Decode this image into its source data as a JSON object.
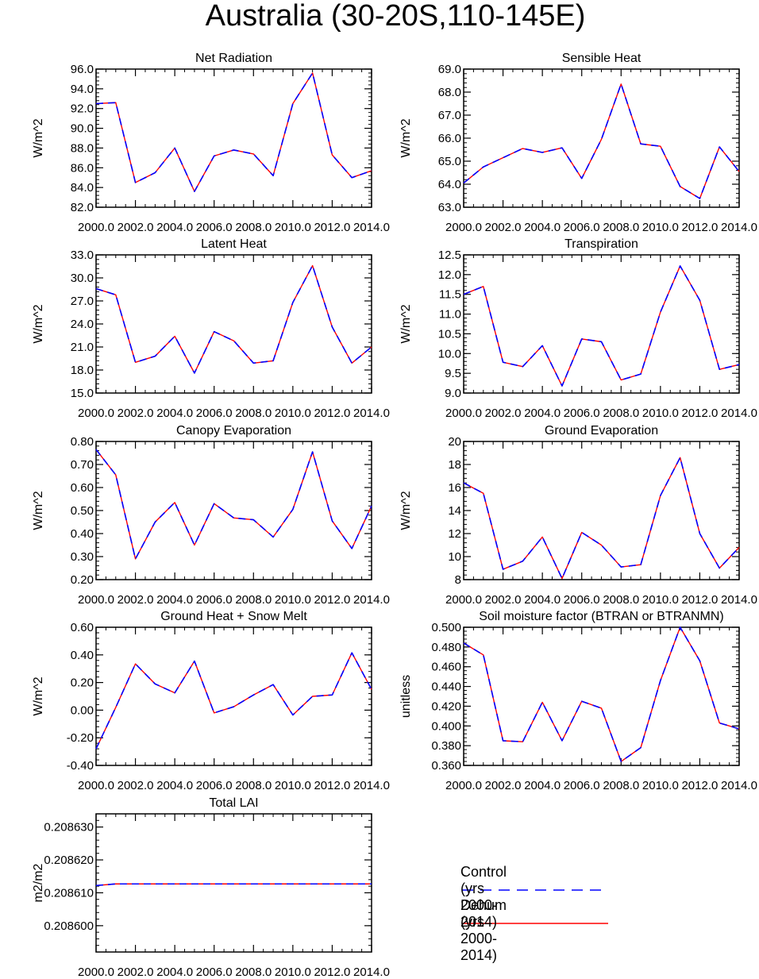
{
  "page": {
    "title": "Australia (30-20S,110-145E)"
  },
  "legend": {
    "items": [
      {
        "label": "Control (yrs 2000-2014)",
        "color": "#0000ff",
        "style": "dashed"
      },
      {
        "label": "Dehum (yrs 2000-2014)",
        "color": "#ff0000",
        "style": "solid"
      }
    ]
  },
  "chart_data": [
    {
      "id": "net-radiation",
      "type": "line",
      "title": "Net Radiation",
      "xlabel": "",
      "ylabel": "W/m^2",
      "x": [
        2000,
        2001,
        2002,
        2003,
        2004,
        2005,
        2006,
        2007,
        2008,
        2009,
        2010,
        2011,
        2012,
        2013,
        2014
      ],
      "xticks": [
        "2000.0",
        "2002.0",
        "2004.0",
        "2006.0",
        "2008.0",
        "2010.0",
        "2012.0",
        "2014.0"
      ],
      "xlim": [
        2000,
        2014
      ],
      "ylim": [
        82,
        96
      ],
      "yticks": [
        "82.0",
        "84.0",
        "86.0",
        "88.0",
        "90.0",
        "92.0",
        "94.0",
        "96.0"
      ],
      "series": [
        {
          "name": "Control (yrs 2000-2014)",
          "values": [
            92.5,
            92.6,
            84.5,
            85.5,
            88.0,
            83.6,
            87.2,
            87.8,
            87.4,
            85.2,
            92.5,
            95.6,
            87.3,
            85.0,
            85.7
          ]
        },
        {
          "name": "Dehum (yrs 2000-2014)",
          "values": [
            92.5,
            92.6,
            84.5,
            85.5,
            88.0,
            83.6,
            87.2,
            87.8,
            87.4,
            85.2,
            92.5,
            95.6,
            87.3,
            85.0,
            85.7
          ]
        }
      ]
    },
    {
      "id": "sensible-heat",
      "type": "line",
      "title": "Sensible Heat",
      "xlabel": "",
      "ylabel": "W/m^2",
      "x": [
        2000,
        2001,
        2002,
        2003,
        2004,
        2005,
        2006,
        2007,
        2008,
        2009,
        2010,
        2011,
        2012,
        2013,
        2014
      ],
      "xticks": [
        "2000.0",
        "2002.0",
        "2004.0",
        "2006.0",
        "2008.0",
        "2010.0",
        "2012.0",
        "2014.0"
      ],
      "xlim": [
        2000,
        2014
      ],
      "ylim": [
        63,
        69
      ],
      "yticks": [
        "63.0",
        "64.0",
        "65.0",
        "66.0",
        "67.0",
        "68.0",
        "69.0"
      ],
      "series": [
        {
          "name": "Control (yrs 2000-2014)",
          "values": [
            64.05,
            64.75,
            65.15,
            65.55,
            65.38,
            65.58,
            64.25,
            65.95,
            68.35,
            65.75,
            65.65,
            63.9,
            63.38,
            65.62,
            64.55
          ]
        },
        {
          "name": "Dehum (yrs 2000-2014)",
          "values": [
            64.05,
            64.75,
            65.15,
            65.55,
            65.38,
            65.58,
            64.25,
            65.95,
            68.35,
            65.75,
            65.65,
            63.9,
            63.38,
            65.62,
            64.55
          ]
        }
      ]
    },
    {
      "id": "latent-heat",
      "type": "line",
      "title": "Latent Heat",
      "xlabel": "",
      "ylabel": "W/m^2",
      "x": [
        2000,
        2001,
        2002,
        2003,
        2004,
        2005,
        2006,
        2007,
        2008,
        2009,
        2010,
        2011,
        2012,
        2013,
        2014
      ],
      "xticks": [
        "2000.0",
        "2002.0",
        "2004.0",
        "2006.0",
        "2008.0",
        "2010.0",
        "2012.0",
        "2014.0"
      ],
      "xlim": [
        2000,
        2014
      ],
      "ylim": [
        15,
        33
      ],
      "yticks": [
        "15.0",
        "18.0",
        "21.0",
        "24.0",
        "27.0",
        "30.0",
        "33.0"
      ],
      "series": [
        {
          "name": "Control (yrs 2000-2014)",
          "values": [
            28.6,
            27.8,
            19.0,
            19.8,
            22.4,
            17.6,
            23.0,
            21.8,
            18.9,
            19.2,
            26.8,
            31.6,
            23.6,
            18.9,
            21.0
          ]
        },
        {
          "name": "Dehum (yrs 2000-2014)",
          "values": [
            28.6,
            27.8,
            19.0,
            19.8,
            22.4,
            17.6,
            23.0,
            21.8,
            18.9,
            19.2,
            26.8,
            31.6,
            23.6,
            18.9,
            21.0
          ]
        }
      ]
    },
    {
      "id": "transpiration",
      "type": "line",
      "title": "Transpiration",
      "xlabel": "",
      "ylabel": "W/m^2",
      "x": [
        2000,
        2001,
        2002,
        2003,
        2004,
        2005,
        2006,
        2007,
        2008,
        2009,
        2010,
        2011,
        2012,
        2013,
        2014
      ],
      "xticks": [
        "2000.0",
        "2002.0",
        "2004.0",
        "2006.0",
        "2008.0",
        "2010.0",
        "2012.0",
        "2014.0"
      ],
      "xlim": [
        2000,
        2014
      ],
      "ylim": [
        9.0,
        12.5
      ],
      "yticks": [
        "9.0",
        "9.5",
        "10.0",
        "10.5",
        "11.0",
        "11.5",
        "12.0",
        "12.5"
      ],
      "series": [
        {
          "name": "Control (yrs 2000-2014)",
          "values": [
            11.5,
            11.7,
            9.78,
            9.67,
            10.2,
            9.18,
            10.37,
            10.3,
            9.33,
            9.48,
            11.05,
            12.22,
            11.35,
            9.6,
            9.72
          ]
        },
        {
          "name": "Dehum (yrs 2000-2014)",
          "values": [
            11.5,
            11.7,
            9.78,
            9.67,
            10.2,
            9.18,
            10.37,
            10.3,
            9.33,
            9.48,
            11.05,
            12.22,
            11.35,
            9.6,
            9.72
          ]
        }
      ]
    },
    {
      "id": "canopy-evaporation",
      "type": "line",
      "title": "Canopy Evaporation",
      "xlabel": "",
      "ylabel": "W/m^2",
      "x": [
        2000,
        2001,
        2002,
        2003,
        2004,
        2005,
        2006,
        2007,
        2008,
        2009,
        2010,
        2011,
        2012,
        2013,
        2014
      ],
      "xticks": [
        "2000.0",
        "2002.0",
        "2004.0",
        "2006.0",
        "2008.0",
        "2010.0",
        "2012.0",
        "2014.0"
      ],
      "xlim": [
        2000,
        2014
      ],
      "ylim": [
        0.2,
        0.8
      ],
      "yticks": [
        "0.20",
        "0.30",
        "0.40",
        "0.50",
        "0.60",
        "0.70",
        "0.80"
      ],
      "series": [
        {
          "name": "Control (yrs 2000-2014)",
          "values": [
            0.765,
            0.655,
            0.29,
            0.45,
            0.535,
            0.35,
            0.53,
            0.468,
            0.46,
            0.385,
            0.505,
            0.755,
            0.455,
            0.335,
            0.52
          ]
        },
        {
          "name": "Dehum (yrs 2000-2014)",
          "values": [
            0.765,
            0.655,
            0.29,
            0.45,
            0.535,
            0.35,
            0.53,
            0.468,
            0.46,
            0.385,
            0.505,
            0.755,
            0.455,
            0.335,
            0.52
          ]
        }
      ]
    },
    {
      "id": "ground-evaporation",
      "type": "line",
      "title": "Ground Evaporation",
      "xlabel": "",
      "ylabel": "W/m^2",
      "x": [
        2000,
        2001,
        2002,
        2003,
        2004,
        2005,
        2006,
        2007,
        2008,
        2009,
        2010,
        2011,
        2012,
        2013,
        2014
      ],
      "xticks": [
        "2000.0",
        "2002.0",
        "2004.0",
        "2006.0",
        "2008.0",
        "2010.0",
        "2012.0",
        "2014.0"
      ],
      "xlim": [
        2000,
        2014
      ],
      "ylim": [
        8,
        20
      ],
      "yticks": [
        "8",
        "10",
        "12",
        "14",
        "16",
        "18",
        "20"
      ],
      "series": [
        {
          "name": "Control (yrs 2000-2014)",
          "values": [
            16.4,
            15.5,
            8.9,
            9.6,
            11.7,
            8.1,
            12.1,
            11.0,
            9.1,
            9.3,
            15.3,
            18.6,
            12.0,
            9.0,
            10.8
          ]
        },
        {
          "name": "Dehum (yrs 2000-2014)",
          "values": [
            16.4,
            15.5,
            8.9,
            9.6,
            11.7,
            8.1,
            12.1,
            11.0,
            9.1,
            9.3,
            15.3,
            18.6,
            12.0,
            9.0,
            10.8
          ]
        }
      ]
    },
    {
      "id": "ground-heat",
      "type": "line",
      "title": "Ground Heat + Snow Melt",
      "xlabel": "",
      "ylabel": "W/m^2",
      "x": [
        2000,
        2001,
        2002,
        2003,
        2004,
        2005,
        2006,
        2007,
        2008,
        2009,
        2010,
        2011,
        2012,
        2013,
        2014
      ],
      "xticks": [
        "2000.0",
        "2002.0",
        "2004.0",
        "2006.0",
        "2008.0",
        "2010.0",
        "2012.0",
        "2014.0"
      ],
      "xlim": [
        2000,
        2014
      ],
      "ylim": [
        -0.4,
        0.6
      ],
      "yticks": [
        "-0.40",
        "-0.20",
        "0.00",
        "0.20",
        "0.40",
        "0.60"
      ],
      "series": [
        {
          "name": "Control (yrs 2000-2014)",
          "values": [
            -0.28,
            0.02,
            0.335,
            0.19,
            0.125,
            0.355,
            -0.02,
            0.025,
            0.11,
            0.185,
            -0.035,
            0.1,
            0.11,
            0.415,
            0.15
          ]
        },
        {
          "name": "Dehum (yrs 2000-2014)",
          "values": [
            -0.28,
            0.02,
            0.335,
            0.19,
            0.125,
            0.355,
            -0.02,
            0.025,
            0.11,
            0.185,
            -0.035,
            0.1,
            0.11,
            0.415,
            0.15
          ]
        }
      ]
    },
    {
      "id": "soil-moisture",
      "type": "line",
      "title": "Soil moisture factor (BTRAN or BTRANMN)",
      "xlabel": "",
      "ylabel": "unitless",
      "x": [
        2000,
        2001,
        2002,
        2003,
        2004,
        2005,
        2006,
        2007,
        2008,
        2009,
        2010,
        2011,
        2012,
        2013,
        2014
      ],
      "xticks": [
        "2000.0",
        "2002.0",
        "2004.0",
        "2006.0",
        "2008.0",
        "2010.0",
        "2012.0",
        "2014.0"
      ],
      "xlim": [
        2000,
        2014
      ],
      "ylim": [
        0.36,
        0.5
      ],
      "yticks": [
        "0.360",
        "0.380",
        "0.400",
        "0.420",
        "0.440",
        "0.460",
        "0.480",
        "0.500"
      ],
      "series": [
        {
          "name": "Control (yrs 2000-2014)",
          "values": [
            0.484,
            0.472,
            0.385,
            0.384,
            0.424,
            0.385,
            0.425,
            0.418,
            0.364,
            0.378,
            0.446,
            0.5,
            0.466,
            0.403,
            0.397
          ]
        },
        {
          "name": "Dehum (yrs 2000-2014)",
          "values": [
            0.484,
            0.472,
            0.385,
            0.384,
            0.424,
            0.385,
            0.425,
            0.418,
            0.364,
            0.378,
            0.446,
            0.5,
            0.466,
            0.403,
            0.397
          ]
        }
      ]
    },
    {
      "id": "total-lai",
      "type": "line",
      "title": "Total LAI",
      "xlabel": "",
      "ylabel": "m2/m2",
      "x": [
        2000,
        2001,
        2002,
        2003,
        2004,
        2005,
        2006,
        2007,
        2008,
        2009,
        2010,
        2011,
        2012,
        2013,
        2014
      ],
      "xticks": [
        "2000.0",
        "2002.0",
        "2004.0",
        "2006.0",
        "2008.0",
        "2010.0",
        "2012.0",
        "2014.0"
      ],
      "xlim": [
        2000,
        2014
      ],
      "ylim": [
        0.208592,
        0.208634
      ],
      "yticks": [
        "0.208600",
        "0.208610",
        "0.208620",
        "0.208630"
      ],
      "series": [
        {
          "name": "Control (yrs 2000-2014)",
          "values": [
            0.2086122,
            0.2086127,
            0.2086127,
            0.2086127,
            0.2086127,
            0.2086127,
            0.2086127,
            0.2086127,
            0.2086127,
            0.2086127,
            0.2086127,
            0.2086127,
            0.2086127,
            0.2086127,
            0.2086127
          ]
        },
        {
          "name": "Dehum (yrs 2000-2014)",
          "values": [
            0.2086122,
            0.2086127,
            0.2086127,
            0.2086127,
            0.2086127,
            0.2086127,
            0.2086127,
            0.2086127,
            0.2086127,
            0.2086127,
            0.2086127,
            0.2086127,
            0.2086127,
            0.2086127,
            0.2086127
          ]
        }
      ]
    }
  ]
}
